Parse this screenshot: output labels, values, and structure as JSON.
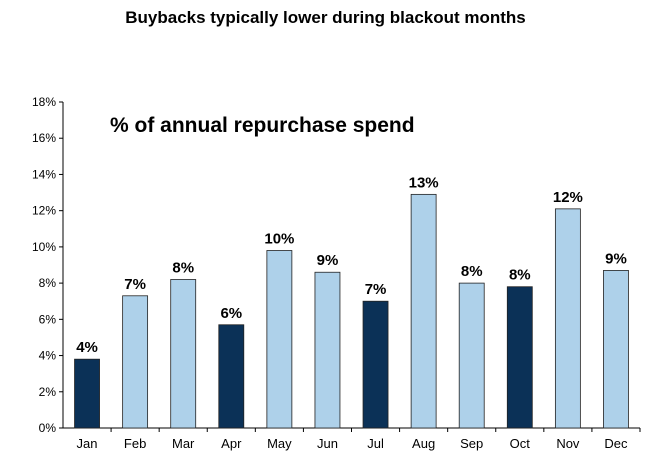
{
  "chart_data": {
    "type": "bar",
    "title": "Buybacks typically lower during blackout months",
    "subtitle": "% of annual repurchase spend",
    "xlabel": "",
    "ylabel": "",
    "ylim": [
      0,
      18
    ],
    "yticks": [
      0,
      2,
      4,
      6,
      8,
      10,
      12,
      14,
      16,
      18
    ],
    "ytick_labels": [
      "0%",
      "2%",
      "4%",
      "6%",
      "8%",
      "10%",
      "12%",
      "14%",
      "16%",
      "18%"
    ],
    "categories": [
      "Jan",
      "Feb",
      "Mar",
      "Apr",
      "May",
      "Jun",
      "Jul",
      "Aug",
      "Sep",
      "Oct",
      "Nov",
      "Dec"
    ],
    "values": [
      3.8,
      7.3,
      8.2,
      5.7,
      9.8,
      8.6,
      7.0,
      12.9,
      8.0,
      7.8,
      12.1,
      8.7
    ],
    "data_labels": [
      "4%",
      "7%",
      "8%",
      "6%",
      "10%",
      "9%",
      "7%",
      "13%",
      "8%",
      "8%",
      "12%",
      "9%"
    ],
    "blackout": [
      true,
      false,
      false,
      true,
      false,
      false,
      true,
      false,
      false,
      true,
      false,
      false
    ],
    "grid": false,
    "legend": "none"
  },
  "colors": {
    "blackout_bar": "#0b3157",
    "normal_bar": "#aed1ea",
    "bar_edge": "#222222",
    "axis": "#000000"
  }
}
